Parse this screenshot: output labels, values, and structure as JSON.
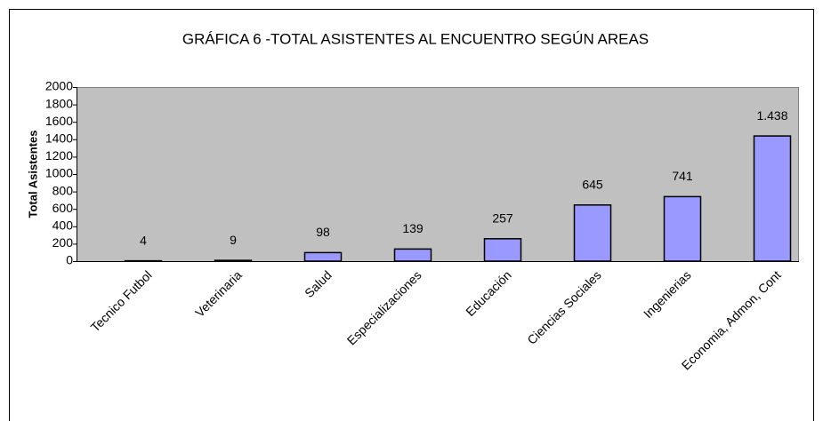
{
  "chart_data": {
    "type": "bar",
    "title": "GRÁFICA 6 -TOTAL ASISTENTES AL ENCUENTRO SEGÚN AREAS",
    "y_label": "Total Asistentes",
    "categories": [
      "Tecnico Futbol",
      "Veterinaria",
      "Salud",
      "Especializaciones",
      "Educación",
      "Ciencias Sociales",
      "Ingenierias",
      "Economia, Admon, Cont"
    ],
    "values": [
      4,
      9,
      98,
      139,
      257,
      645,
      741,
      1438
    ],
    "value_labels": [
      "4",
      "9",
      "98",
      "139",
      "257",
      "645",
      "741",
      "1.438"
    ],
    "color": "#9999ff",
    "ylim": [
      0,
      2000
    ],
    "yticks": [
      0,
      200,
      400,
      600,
      800,
      1000,
      1200,
      1400,
      1600,
      1800,
      2000
    ],
    "grid": false
  }
}
